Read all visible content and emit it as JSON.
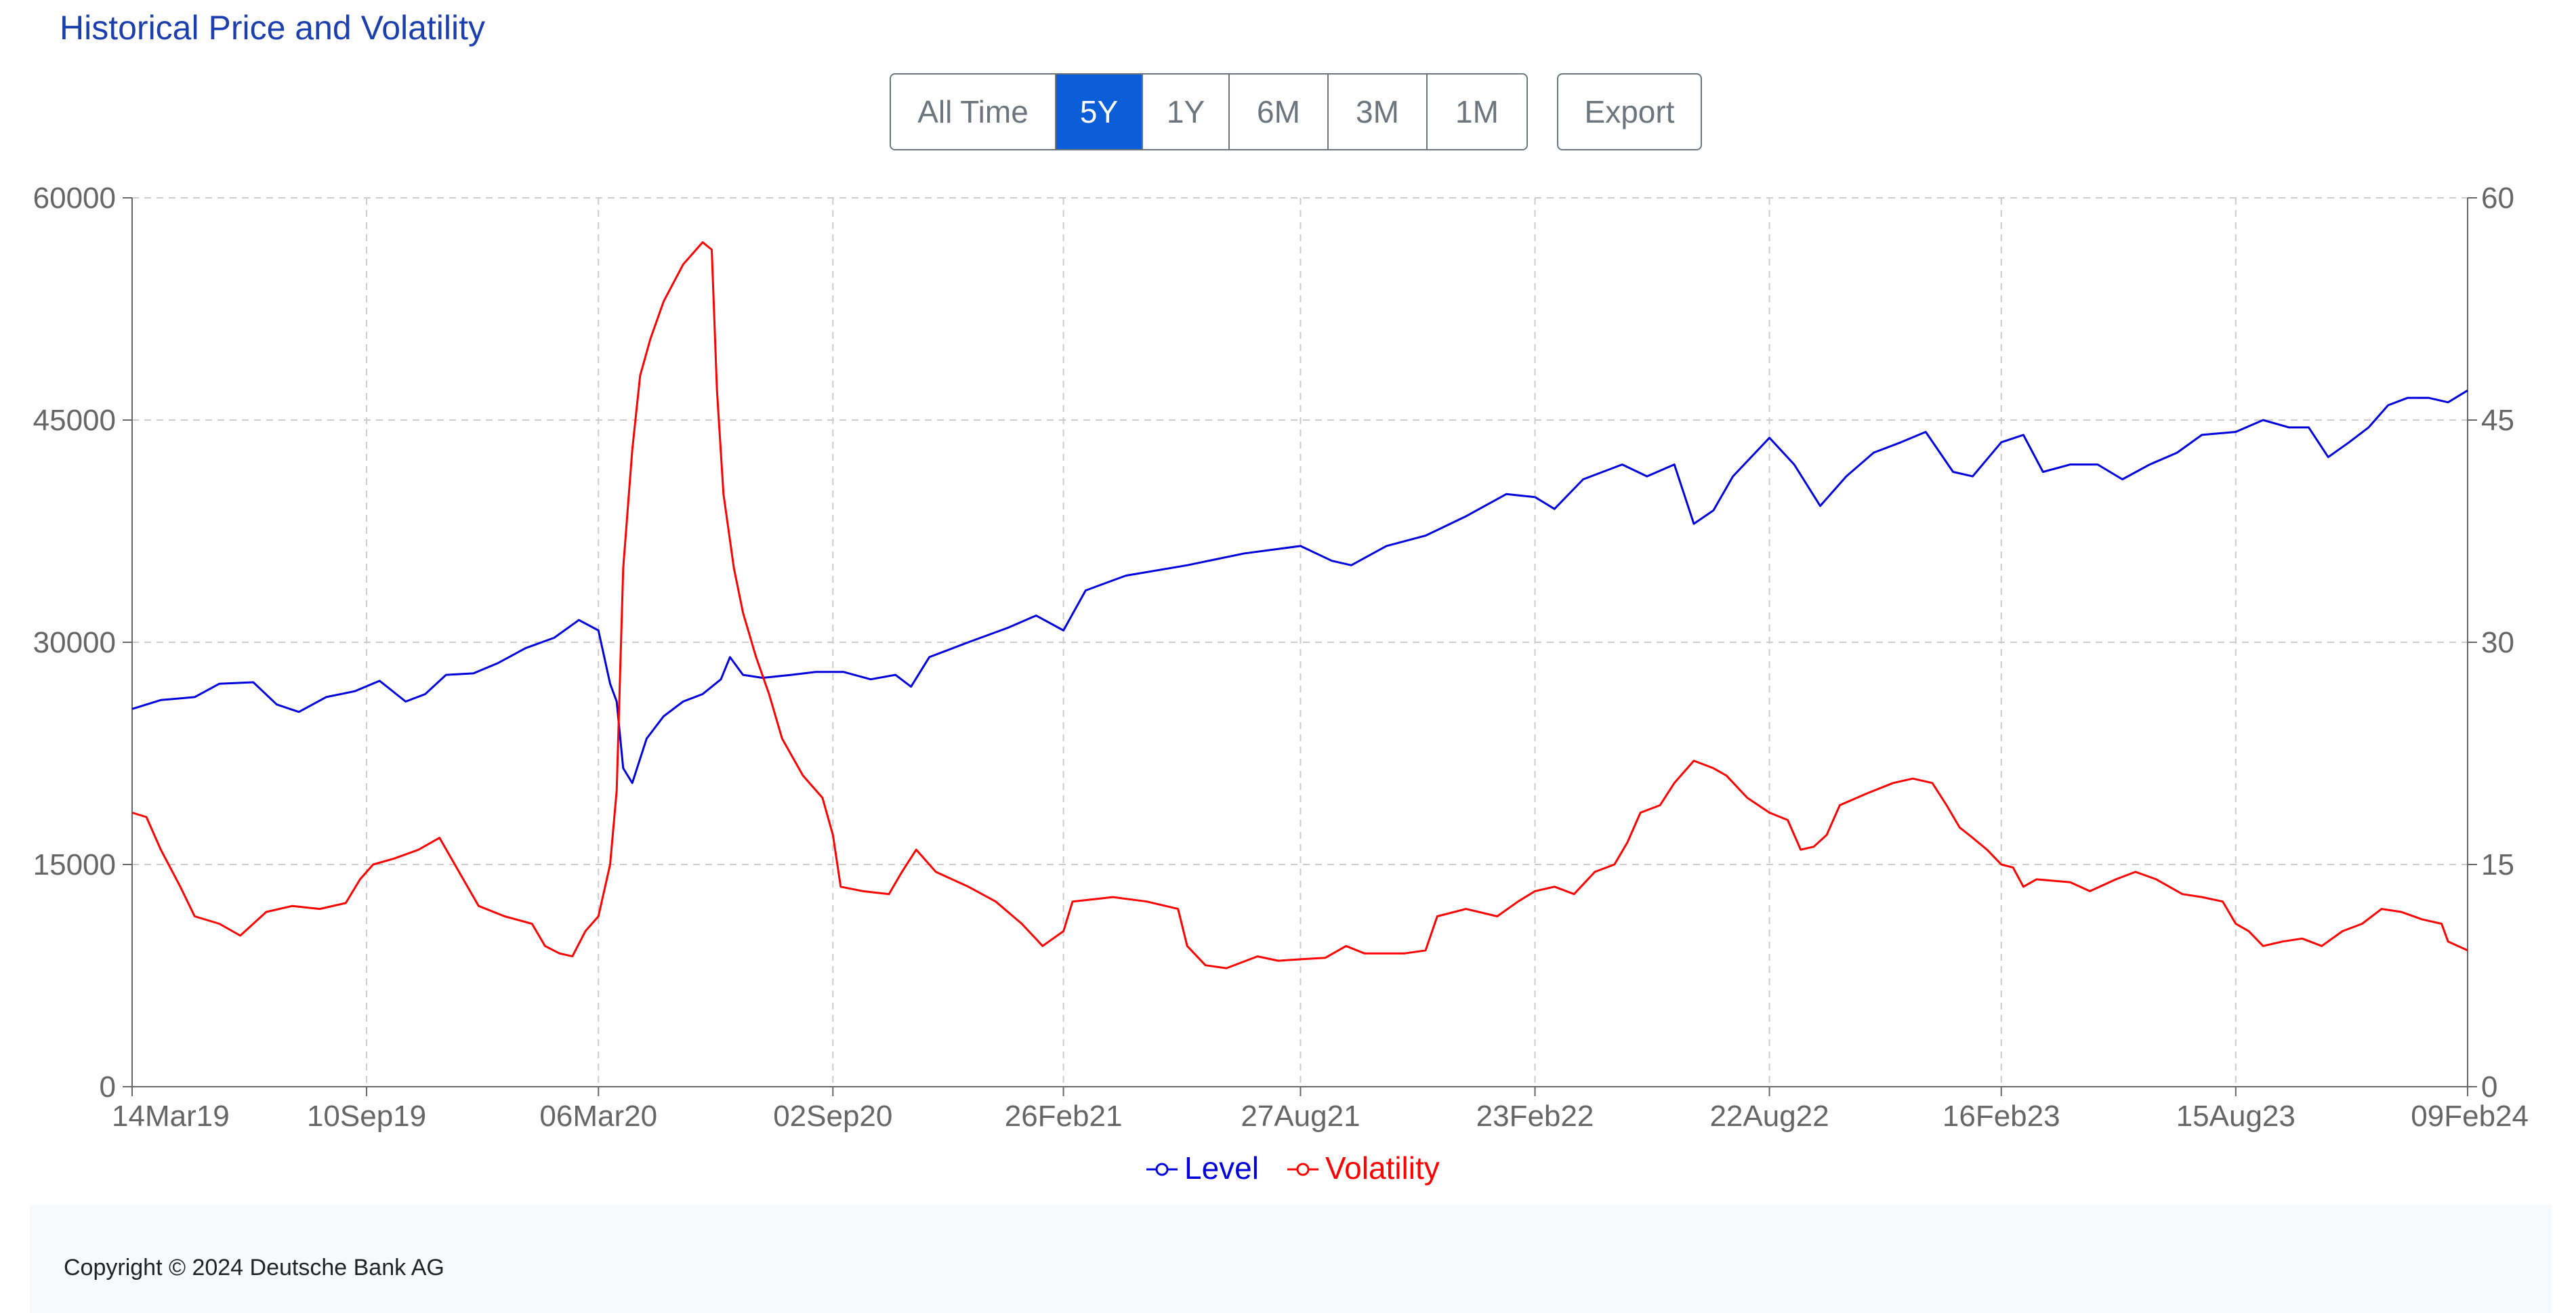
{
  "title": "Historical Price and Volatility",
  "toolbar": {
    "ranges": [
      {
        "label": "All Time",
        "active": false
      },
      {
        "label": "5Y",
        "active": true
      },
      {
        "label": "1Y",
        "active": false
      },
      {
        "label": "6M",
        "active": false
      },
      {
        "label": "3M",
        "active": false
      },
      {
        "label": "1M",
        "active": false
      }
    ],
    "export_label": "Export"
  },
  "footer": {
    "copyright": "Copyright © 2024 Deutsche Bank AG"
  },
  "colors": {
    "level": "#0000dd",
    "volatility": "#ff0000",
    "grid": "#cccccc",
    "active_button": "#0b5ed7"
  },
  "chart_data": {
    "type": "line",
    "title": "",
    "x_ticks": [
      "14Mar19",
      "10Sep19",
      "06Mar20",
      "02Sep20",
      "26Feb21",
      "27Aug21",
      "23Feb22",
      "22Aug22",
      "16Feb23",
      "15Aug23",
      "09Feb24"
    ],
    "xlim": [
      "2019-03-14",
      "2024-02-09"
    ],
    "y_left": {
      "lim": [
        0,
        60000
      ],
      "ticks": [
        "0",
        "15000",
        "30000",
        "45000",
        "60000"
      ]
    },
    "y_right": {
      "lim": [
        0,
        60
      ],
      "ticks": [
        "0",
        "15",
        "30",
        "45",
        "60"
      ]
    },
    "grid": true,
    "legend_position": "bottom-center",
    "series": [
      {
        "name": "Level",
        "axis": "left",
        "points": [
          [
            "2019-03-14",
            25500
          ],
          [
            "2019-04-05",
            26100
          ],
          [
            "2019-05-01",
            26300
          ],
          [
            "2019-05-20",
            27200
          ],
          [
            "2019-06-15",
            27300
          ],
          [
            "2019-07-03",
            25800
          ],
          [
            "2019-07-20",
            25300
          ],
          [
            "2019-08-10",
            26300
          ],
          [
            "2019-09-01",
            26700
          ],
          [
            "2019-09-20",
            27400
          ],
          [
            "2019-10-10",
            26000
          ],
          [
            "2019-10-25",
            26500
          ],
          [
            "2019-11-10",
            27800
          ],
          [
            "2019-12-01",
            27900
          ],
          [
            "2019-12-20",
            28600
          ],
          [
            "2020-01-10",
            29600
          ],
          [
            "2020-02-01",
            30300
          ],
          [
            "2020-02-20",
            31500
          ],
          [
            "2020-03-06",
            30800
          ],
          [
            "2020-03-15",
            27200
          ],
          [
            "2020-03-20",
            26000
          ],
          [
            "2020-03-25",
            21500
          ],
          [
            "2020-04-01",
            20500
          ],
          [
            "2020-04-12",
            23500
          ],
          [
            "2020-04-25",
            25000
          ],
          [
            "2020-05-10",
            26000
          ],
          [
            "2020-05-25",
            26500
          ],
          [
            "2020-06-08",
            27500
          ],
          [
            "2020-06-15",
            29000
          ],
          [
            "2020-06-25",
            27800
          ],
          [
            "2020-07-10",
            27600
          ],
          [
            "2020-08-01",
            27800
          ],
          [
            "2020-08-20",
            28000
          ],
          [
            "2020-09-10",
            28000
          ],
          [
            "2020-10-01",
            27500
          ],
          [
            "2020-10-20",
            27800
          ],
          [
            "2020-11-01",
            27000
          ],
          [
            "2020-11-15",
            29000
          ],
          [
            "2020-12-15",
            30000
          ],
          [
            "2021-01-15",
            31000
          ],
          [
            "2021-02-05",
            31800
          ],
          [
            "2021-02-26",
            30800
          ],
          [
            "2021-03-15",
            33500
          ],
          [
            "2021-04-15",
            34500
          ],
          [
            "2021-06-01",
            35200
          ],
          [
            "2021-07-15",
            36000
          ],
          [
            "2021-08-27",
            36500
          ],
          [
            "2021-09-20",
            35500
          ],
          [
            "2021-10-05",
            35200
          ],
          [
            "2021-11-01",
            36500
          ],
          [
            "2021-12-01",
            37200
          ],
          [
            "2022-01-01",
            38500
          ],
          [
            "2022-02-01",
            40000
          ],
          [
            "2022-02-23",
            39800
          ],
          [
            "2022-03-10",
            39000
          ],
          [
            "2022-04-01",
            41000
          ],
          [
            "2022-05-01",
            42000
          ],
          [
            "2022-05-20",
            41200
          ],
          [
            "2022-06-10",
            42000
          ],
          [
            "2022-06-25",
            38000
          ],
          [
            "2022-07-10",
            38900
          ],
          [
            "2022-07-25",
            41200
          ],
          [
            "2022-08-22",
            43800
          ],
          [
            "2022-09-10",
            42000
          ],
          [
            "2022-09-30",
            39200
          ],
          [
            "2022-10-20",
            41200
          ],
          [
            "2022-11-10",
            42800
          ],
          [
            "2022-12-01",
            43500
          ],
          [
            "2022-12-20",
            44200
          ],
          [
            "2023-01-10",
            41500
          ],
          [
            "2023-01-25",
            41200
          ],
          [
            "2023-02-16",
            43500
          ],
          [
            "2023-03-05",
            44000
          ],
          [
            "2023-03-20",
            41500
          ],
          [
            "2023-04-10",
            42000
          ],
          [
            "2023-05-01",
            42000
          ],
          [
            "2023-05-20",
            41000
          ],
          [
            "2023-06-10",
            42000
          ],
          [
            "2023-07-01",
            42800
          ],
          [
            "2023-07-20",
            44000
          ],
          [
            "2023-08-15",
            44200
          ],
          [
            "2023-09-05",
            45000
          ],
          [
            "2023-09-25",
            44500
          ],
          [
            "2023-10-10",
            44500
          ],
          [
            "2023-10-25",
            42500
          ],
          [
            "2023-11-10",
            43500
          ],
          [
            "2023-11-25",
            44500
          ],
          [
            "2023-12-10",
            46000
          ],
          [
            "2023-12-25",
            46500
          ],
          [
            "2024-01-10",
            46500
          ],
          [
            "2024-01-25",
            46200
          ],
          [
            "2024-02-09",
            47000
          ]
        ]
      },
      {
        "name": "Volatility",
        "axis": "right",
        "points": [
          [
            "2019-03-14",
            18.5
          ],
          [
            "2019-03-25",
            18.2
          ],
          [
            "2019-04-05",
            16.0
          ],
          [
            "2019-04-20",
            13.5
          ],
          [
            "2019-05-01",
            11.5
          ],
          [
            "2019-05-20",
            11.0
          ],
          [
            "2019-06-05",
            10.2
          ],
          [
            "2019-06-25",
            11.8
          ],
          [
            "2019-07-15",
            12.2
          ],
          [
            "2019-08-05",
            12.0
          ],
          [
            "2019-08-25",
            12.4
          ],
          [
            "2019-09-05",
            14.0
          ],
          [
            "2019-09-15",
            15.0
          ],
          [
            "2019-10-01",
            15.4
          ],
          [
            "2019-10-20",
            16.0
          ],
          [
            "2019-11-05",
            16.8
          ],
          [
            "2019-11-20",
            14.5
          ],
          [
            "2019-12-05",
            12.2
          ],
          [
            "2019-12-25",
            11.5
          ],
          [
            "2020-01-15",
            11.0
          ],
          [
            "2020-01-25",
            9.5
          ],
          [
            "2020-02-05",
            9.0
          ],
          [
            "2020-02-15",
            8.8
          ],
          [
            "2020-02-25",
            10.5
          ],
          [
            "2020-03-06",
            11.5
          ],
          [
            "2020-03-15",
            15.0
          ],
          [
            "2020-03-20",
            20.0
          ],
          [
            "2020-03-25",
            35.0
          ],
          [
            "2020-04-01",
            43.0
          ],
          [
            "2020-04-07",
            48.0
          ],
          [
            "2020-04-15",
            50.5
          ],
          [
            "2020-04-25",
            53.0
          ],
          [
            "2020-05-10",
            55.5
          ],
          [
            "2020-05-25",
            57.0
          ],
          [
            "2020-06-01",
            56.5
          ],
          [
            "2020-06-05",
            47.0
          ],
          [
            "2020-06-10",
            40.0
          ],
          [
            "2020-06-18",
            35.0
          ],
          [
            "2020-06-25",
            32.0
          ],
          [
            "2020-07-05",
            29.0
          ],
          [
            "2020-07-15",
            26.5
          ],
          [
            "2020-07-25",
            23.5
          ],
          [
            "2020-08-10",
            21.0
          ],
          [
            "2020-08-25",
            19.5
          ],
          [
            "2020-09-02",
            17.0
          ],
          [
            "2020-09-08",
            13.5
          ],
          [
            "2020-09-25",
            13.2
          ],
          [
            "2020-10-15",
            13.0
          ],
          [
            "2020-10-25",
            14.5
          ],
          [
            "2020-11-05",
            16.0
          ],
          [
            "2020-11-20",
            14.5
          ],
          [
            "2020-12-15",
            13.5
          ],
          [
            "2021-01-05",
            12.5
          ],
          [
            "2021-01-25",
            11.0
          ],
          [
            "2021-02-10",
            9.5
          ],
          [
            "2021-02-26",
            10.5
          ],
          [
            "2021-03-05",
            12.5
          ],
          [
            "2021-04-05",
            12.8
          ],
          [
            "2021-05-01",
            12.5
          ],
          [
            "2021-05-25",
            12.0
          ],
          [
            "2021-06-01",
            9.5
          ],
          [
            "2021-06-15",
            8.2
          ],
          [
            "2021-07-01",
            8.0
          ],
          [
            "2021-07-25",
            8.8
          ],
          [
            "2021-08-10",
            8.5
          ],
          [
            "2021-08-27",
            8.6
          ],
          [
            "2021-09-15",
            8.7
          ],
          [
            "2021-10-01",
            9.5
          ],
          [
            "2021-10-15",
            9.0
          ],
          [
            "2021-11-15",
            9.0
          ],
          [
            "2021-12-01",
            9.2
          ],
          [
            "2021-12-10",
            11.5
          ],
          [
            "2022-01-01",
            12.0
          ],
          [
            "2022-01-25",
            11.5
          ],
          [
            "2022-02-10",
            12.5
          ],
          [
            "2022-02-23",
            13.2
          ],
          [
            "2022-03-10",
            13.5
          ],
          [
            "2022-03-25",
            13.0
          ],
          [
            "2022-04-10",
            14.5
          ],
          [
            "2022-04-25",
            15.0
          ],
          [
            "2022-05-05",
            16.5
          ],
          [
            "2022-05-15",
            18.5
          ],
          [
            "2022-05-30",
            19.0
          ],
          [
            "2022-06-10",
            20.5
          ],
          [
            "2022-06-25",
            22.0
          ],
          [
            "2022-07-10",
            21.5
          ],
          [
            "2022-07-20",
            21.0
          ],
          [
            "2022-08-05",
            19.5
          ],
          [
            "2022-08-22",
            18.5
          ],
          [
            "2022-09-05",
            18.0
          ],
          [
            "2022-09-15",
            16.0
          ],
          [
            "2022-09-25",
            16.2
          ],
          [
            "2022-10-05",
            17.0
          ],
          [
            "2022-10-15",
            19.0
          ],
          [
            "2022-11-05",
            19.8
          ],
          [
            "2022-11-25",
            20.5
          ],
          [
            "2022-12-10",
            20.8
          ],
          [
            "2022-12-25",
            20.5
          ],
          [
            "2023-01-05",
            19.0
          ],
          [
            "2023-01-15",
            17.5
          ],
          [
            "2023-01-25",
            16.8
          ],
          [
            "2023-02-05",
            16.0
          ],
          [
            "2023-02-16",
            15.0
          ],
          [
            "2023-02-25",
            14.8
          ],
          [
            "2023-03-05",
            13.5
          ],
          [
            "2023-03-15",
            14.0
          ],
          [
            "2023-04-10",
            13.8
          ],
          [
            "2023-04-25",
            13.2
          ],
          [
            "2023-05-15",
            14.0
          ],
          [
            "2023-05-30",
            14.5
          ],
          [
            "2023-06-15",
            14.0
          ],
          [
            "2023-07-05",
            13.0
          ],
          [
            "2023-07-20",
            12.8
          ],
          [
            "2023-08-05",
            12.5
          ],
          [
            "2023-08-15",
            11.0
          ],
          [
            "2023-08-25",
            10.5
          ],
          [
            "2023-09-05",
            9.5
          ],
          [
            "2023-09-20",
            9.8
          ],
          [
            "2023-10-05",
            10.0
          ],
          [
            "2023-10-20",
            9.5
          ],
          [
            "2023-11-05",
            10.5
          ],
          [
            "2023-11-20",
            11.0
          ],
          [
            "2023-12-05",
            12.0
          ],
          [
            "2023-12-20",
            11.8
          ],
          [
            "2024-01-05",
            11.3
          ],
          [
            "2024-01-20",
            11.0
          ],
          [
            "2024-01-25",
            9.8
          ],
          [
            "2024-02-09",
            9.2
          ]
        ]
      }
    ]
  }
}
